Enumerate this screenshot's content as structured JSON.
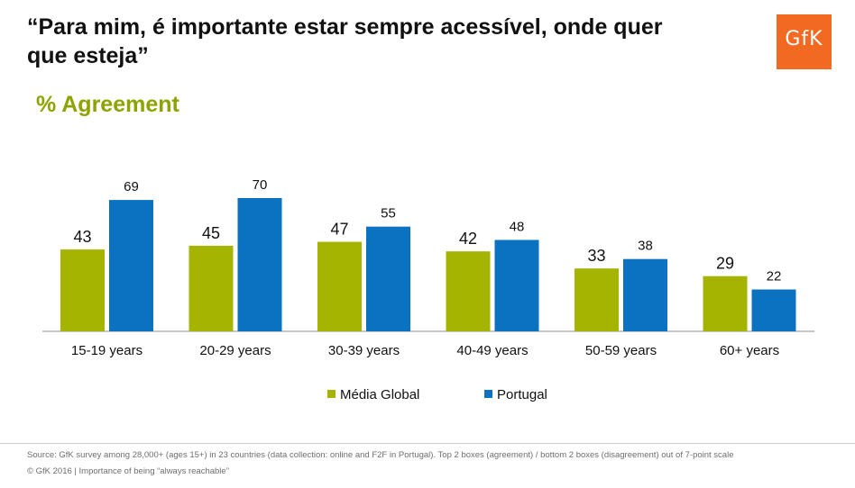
{
  "header": {
    "title_line1": "“Para mim, é importante estar sempre acessível, onde quer",
    "title_line2": "que esteja”",
    "logo_text": "GfK"
  },
  "colors": {
    "media_global": "#a4b400",
    "portugal": "#0b72c2",
    "brand": "#f26a21",
    "subtitle": "#8ca300"
  },
  "chart_data": {
    "type": "bar",
    "title": "% Agreement",
    "categories": [
      "15-19 years",
      "20-29 years",
      "30-39 years",
      "40-49 years",
      "50-59 years",
      "60+ years"
    ],
    "series": [
      {
        "name": "Média Global",
        "values": [
          43,
          45,
          47,
          42,
          33,
          29
        ]
      },
      {
        "name": "Portugal",
        "values": [
          69,
          70,
          55,
          48,
          38,
          22
        ]
      }
    ],
    "ylim": [
      0,
      70
    ],
    "grid": false,
    "legend": "bottom"
  },
  "footer": {
    "source": "Source: GfK survey among 28,000+ (ages 15+) in 23 countries (data collection: online and F2F in Portugal). Top 2 boxes (agreement) / bottom 2 boxes (disagreement) out of 7-point scale",
    "copyright": "© GfK 2016 | Importance of being “always reachable”"
  }
}
